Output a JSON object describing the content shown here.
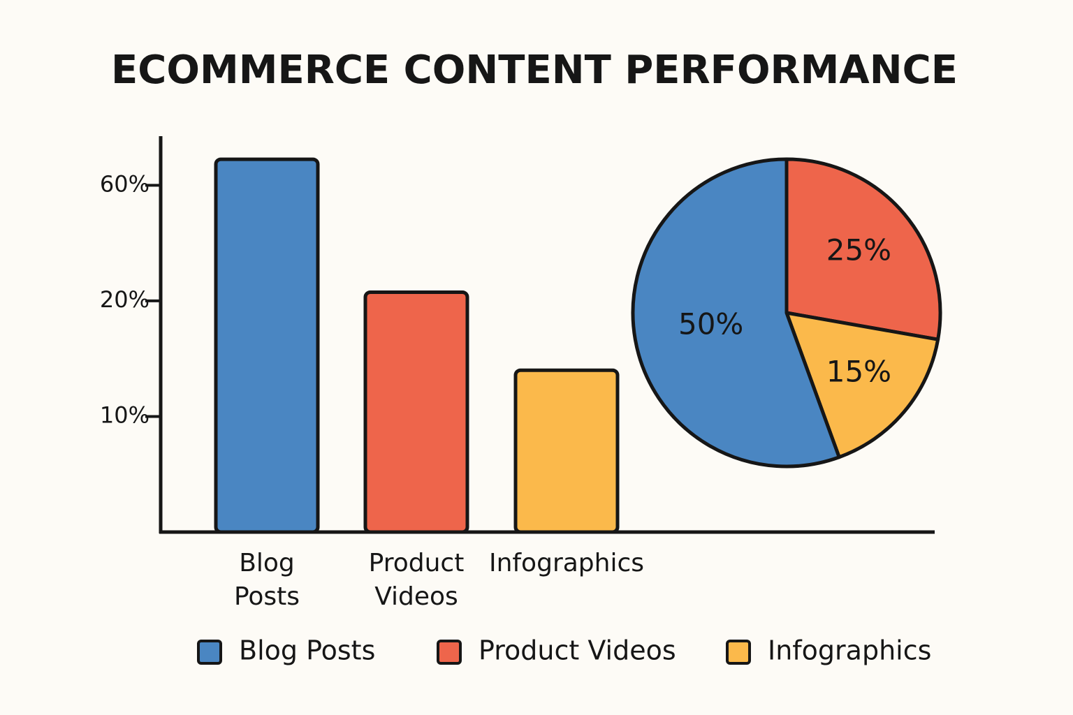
{
  "title": "ECOMMERCE CONTENT PERFORMANCE",
  "chart_data": [
    {
      "type": "bar",
      "categories": [
        "Blog Posts",
        "Product Videos",
        "Infographics"
      ],
      "values": [
        69,
        23,
        14
      ],
      "colors": [
        "#4a86c2",
        "#ee654b",
        "#fbb94b"
      ],
      "ylim": [
        0,
        77
      ],
      "yticks": [
        {
          "value": 10,
          "label": "10%"
        },
        {
          "value": 20,
          "label": "20%"
        },
        {
          "value": 60,
          "label": "60%"
        }
      ]
    },
    {
      "type": "pie",
      "categories": [
        "Blog Posts",
        "Product Videos",
        "Infographics"
      ],
      "values": [
        50,
        25,
        15
      ],
      "value_labels": [
        "50%",
        "25%",
        "15%"
      ],
      "colors": [
        "#4a86c2",
        "#ee654b",
        "#fbb94b"
      ],
      "legend": "bottom"
    }
  ]
}
